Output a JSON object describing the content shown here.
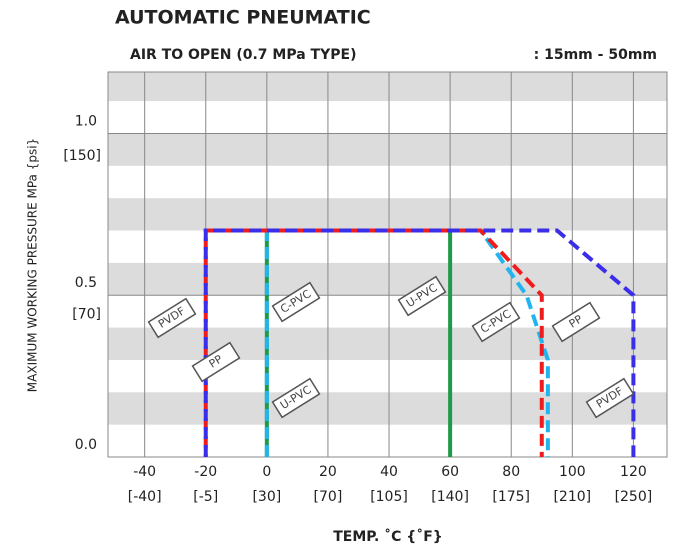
{
  "chart_data": {
    "type": "line",
    "title": "AUTOMATIC  PNEUMATIC",
    "subtitle": "AIR TO OPEN (0.7 MPa TYPE)",
    "size_range": ":  15mm - 50mm",
    "x_label": "TEMP. ˚C {˚F}",
    "y_label": "MAXIMUM WORKING PRESSURE   MPa {psi}",
    "xlim": [
      -52,
      131
    ],
    "ylim": [
      0,
      1.19
    ],
    "xticks": [
      -40,
      -20,
      0,
      20,
      40,
      60,
      80,
      100,
      120
    ],
    "xticks_f": [
      {
        "value": -40,
        "label": "[-40]"
      },
      {
        "value": -20,
        "label": "[-5]"
      },
      {
        "value": 0,
        "label": "[30]"
      },
      {
        "value": 20,
        "label": "[70]"
      },
      {
        "value": 40,
        "label": "[105]"
      },
      {
        "value": 60,
        "label": "[140]"
      },
      {
        "value": 80,
        "label": "[175]"
      },
      {
        "value": 100,
        "label": "[210]"
      },
      {
        "value": 120,
        "label": "[250]"
      }
    ],
    "yticks": [
      {
        "value": 0,
        "label": "0.0"
      },
      {
        "value": 0.5,
        "label": "0.5"
      },
      {
        "value": 1,
        "label": "1.0"
      }
    ],
    "yticks_psi": [
      {
        "value": 0.44,
        "label": "[70]"
      },
      {
        "value": 0.93,
        "label": "[150]"
      }
    ],
    "series": [
      {
        "name": "PVDF",
        "color": "#3a2ee8",
        "dash": true,
        "x": [
          -20,
          -20,
          95,
          120,
          120
        ],
        "y": [
          0,
          0.7,
          0.7,
          0.5,
          0
        ]
      },
      {
        "name": "PP",
        "color": "#ee1c1c",
        "dash": true,
        "x": [
          -20,
          -20,
          70,
          90,
          90
        ],
        "y": [
          0,
          0.7,
          0.7,
          0.5,
          0
        ]
      },
      {
        "name": "C-PVC",
        "color": "#22b4ee",
        "dash": true,
        "x": [
          0,
          0,
          70,
          85,
          92,
          92
        ],
        "y": [
          0,
          0.7,
          0.7,
          0.5,
          0.3,
          0
        ]
      },
      {
        "name": "U-PVC",
        "color": "#1e9a48",
        "dash": false,
        "x": [
          0,
          0,
          60,
          60
        ],
        "y": [
          0,
          0.7,
          0.7,
          0
        ]
      }
    ]
  }
}
